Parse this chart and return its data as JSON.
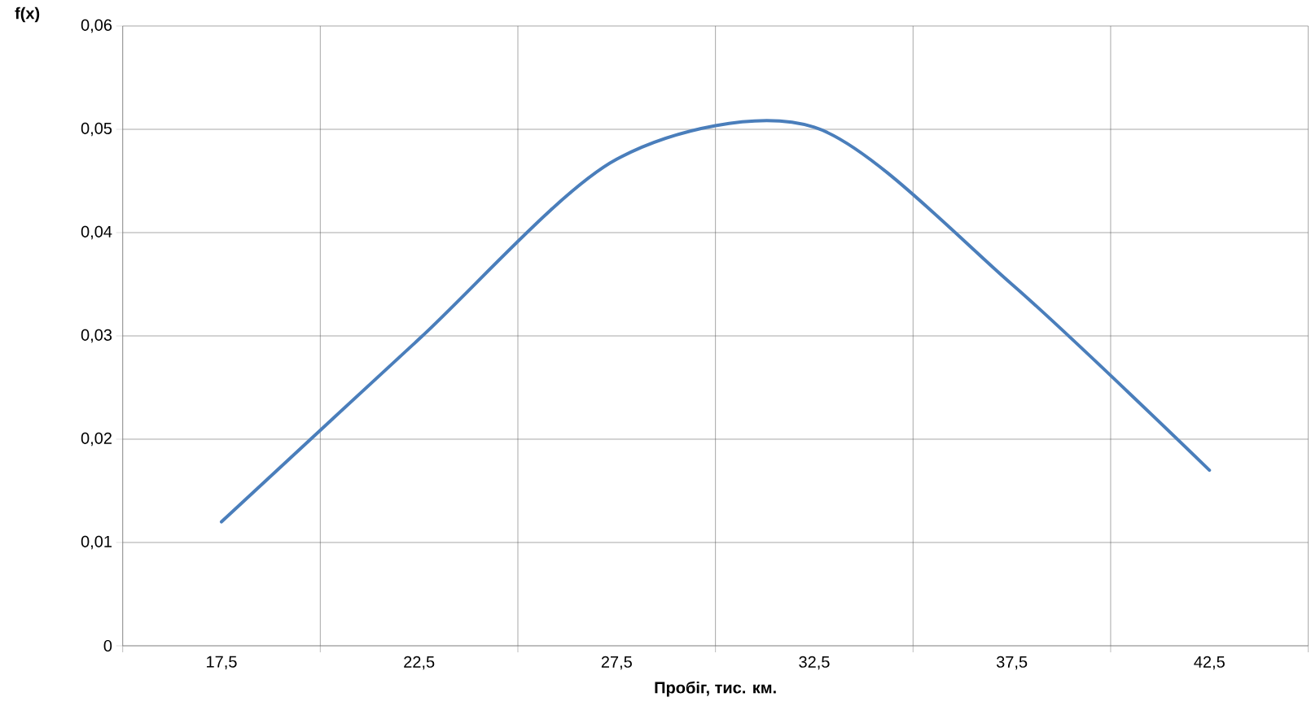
{
  "chart_data": {
    "type": "line",
    "xlabel": "Пробіг, тис. км.",
    "ylabel": "f(x)",
    "categories": [
      "17,5",
      "22,5",
      "27,5",
      "32,5",
      "37,5",
      "42,5"
    ],
    "series": [
      {
        "color": "#4a7ebb",
        "values": [
          0.012,
          0.0297,
          0.0471,
          0.0502,
          0.035,
          0.017
        ]
      }
    ],
    "ylim": [
      0,
      0.06
    ],
    "yticks": [
      0,
      {
        "value": 0.01,
        "label": "0,01"
      },
      {
        "value": 0.02,
        "label": "0,02"
      },
      {
        "value": 0.03,
        "label": "0,03"
      },
      {
        "value": 0.04,
        "label": "0,04"
      },
      {
        "value": 0.05,
        "label": "0,05"
      },
      {
        "value": 0.06,
        "label": "0,06"
      }
    ],
    "grid": true
  }
}
